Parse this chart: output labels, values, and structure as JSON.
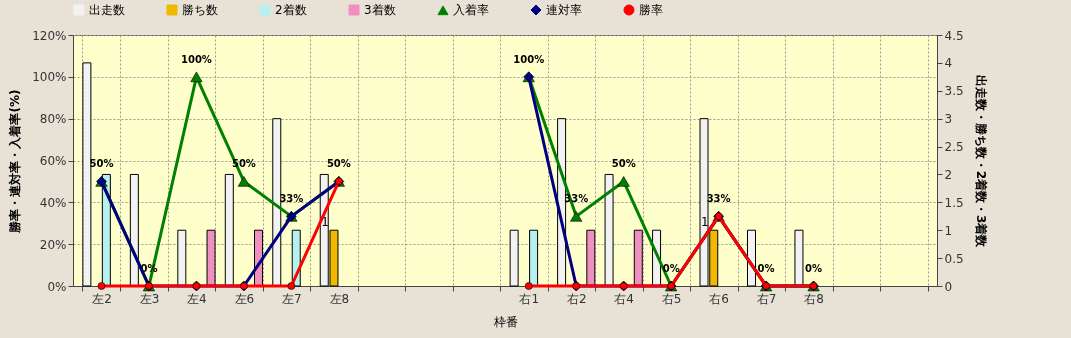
{
  "chart_data": {
    "type": "bar",
    "categories": [
      "左2",
      "左3",
      "左4",
      "左6",
      "左7",
      "左8",
      null,
      null,
      null,
      "右1",
      "右2",
      "右4",
      "右5",
      "右6",
      "右7",
      "右8",
      null,
      null
    ],
    "series": [
      {
        "name": "出走数",
        "axis": "y2",
        "color": "#f2f2f2",
        "values": [
          4,
          2,
          1,
          2,
          3,
          2,
          null,
          null,
          null,
          1,
          3,
          2,
          1,
          3,
          1,
          1,
          null,
          null
        ]
      },
      {
        "name": "勝ち数",
        "axis": "y2",
        "color": "#f0b800",
        "values": [
          null,
          null,
          null,
          null,
          null,
          1,
          null,
          null,
          null,
          null,
          null,
          null,
          null,
          1,
          null,
          null,
          null,
          null
        ],
        "value_labels": [
          null,
          null,
          null,
          null,
          null,
          "1",
          null,
          null,
          null,
          null,
          null,
          null,
          null,
          "1",
          null,
          null,
          null,
          null
        ]
      },
      {
        "name": "2着数",
        "axis": "y2",
        "color": "#b8f0f0",
        "values": [
          2,
          null,
          null,
          null,
          1,
          null,
          null,
          null,
          null,
          1,
          null,
          null,
          null,
          null,
          null,
          null,
          null,
          null
        ]
      },
      {
        "name": "3着数",
        "axis": "y2",
        "color": "#f090c0",
        "values": [
          null,
          null,
          1,
          1,
          null,
          null,
          null,
          null,
          null,
          null,
          1,
          1,
          null,
          null,
          null,
          null,
          null,
          null
        ]
      },
      {
        "name": "入着率",
        "type": "line",
        "marker": "triangle",
        "color": "#008000",
        "values": [
          50,
          0,
          100,
          50,
          33.3,
          50,
          null,
          null,
          null,
          100,
          33.3,
          50,
          0,
          33.3,
          0,
          0,
          null,
          null
        ],
        "value_labels": [
          "50%",
          "0%",
          "100%",
          "50%",
          "33%",
          "50%",
          null,
          null,
          null,
          "100%",
          "33%",
          "50%",
          "0%",
          "33%",
          "0%",
          "0%",
          null,
          null
        ]
      },
      {
        "name": "連対率",
        "type": "line",
        "marker": "diamond",
        "color": "#000080",
        "values": [
          50,
          0,
          0,
          0,
          33.3,
          50,
          null,
          null,
          null,
          100,
          0,
          0,
          0,
          33.3,
          0,
          0,
          null,
          null
        ]
      },
      {
        "name": "勝率",
        "type": "line",
        "marker": "circle",
        "color": "#ff0000",
        "values": [
          0,
          0,
          0,
          0,
          0,
          50,
          null,
          null,
          null,
          0,
          0,
          0,
          0,
          33.3,
          0,
          0,
          null,
          null
        ]
      }
    ],
    "xlabel": "枠番",
    "ylabel": "勝率・連対率・入着率(%)",
    "y2label": "出走数・勝ち数・2着数・3着数",
    "ylim": [
      0,
      120
    ],
    "yticks": [
      {
        "value": 0,
        "label": "0%"
      },
      {
        "value": 20,
        "label": "20%"
      },
      {
        "value": 40,
        "label": "40%"
      },
      {
        "value": 60,
        "label": "60%"
      },
      {
        "value": 80,
        "label": "80%"
      },
      {
        "value": 100,
        "label": "100%"
      },
      {
        "value": 120,
        "label": "120%"
      }
    ],
    "y2lim": [
      0,
      4.5
    ],
    "y2ticks": [
      0,
      0.5,
      1,
      1.5,
      2,
      2.5,
      3,
      3.5,
      4,
      4.5
    ],
    "grid": true,
    "legend": "top"
  }
}
